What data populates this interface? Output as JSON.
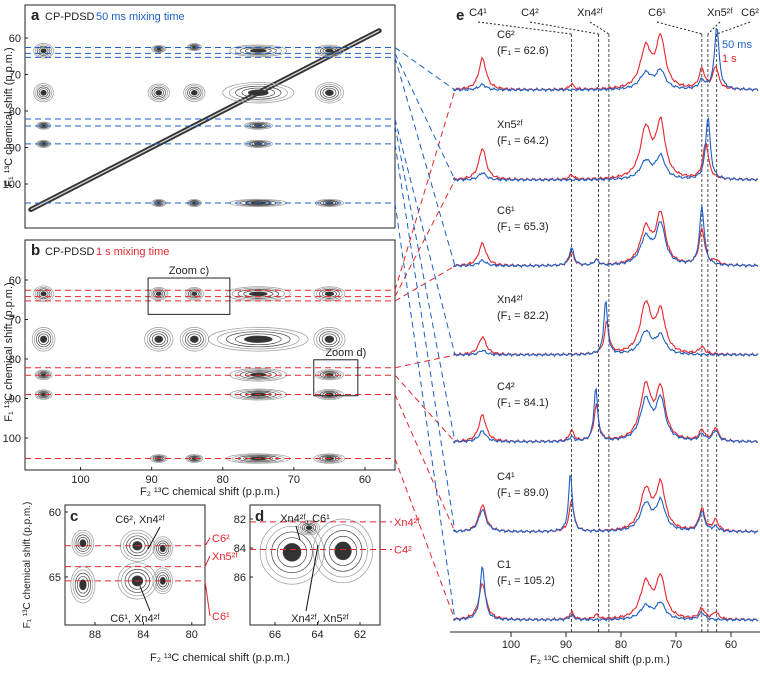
{
  "panel_a": {
    "label": "a",
    "title": "CP-PDSD",
    "mixing": "50 ms mixing time",
    "y_axis_label": "F₁ ¹³C chemical shift (p.p.m.)",
    "yticks": [
      60,
      70,
      80,
      90,
      100
    ],
    "dashed_lines": [
      62.6,
      64.2,
      65.3,
      82.2,
      84.1,
      89.0,
      105.2
    ],
    "diagonal": [
      107,
      58
    ],
    "peaks": [
      [
        105.2,
        63.5,
        1.4,
        2
      ],
      [
        105.2,
        75,
        1.4,
        2.5
      ],
      [
        105.2,
        84,
        1,
        1
      ],
      [
        105.2,
        89,
        1,
        1
      ],
      [
        89,
        63,
        1,
        1
      ],
      [
        84,
        62.5,
        1,
        1
      ],
      [
        75,
        63.5,
        4,
        1.6
      ],
      [
        65,
        63.5,
        2,
        1.6
      ],
      [
        75,
        75,
        5,
        2.8
      ],
      [
        65,
        75,
        2,
        2.8
      ],
      [
        89,
        75,
        1.5,
        2.4
      ],
      [
        84,
        75,
        1.5,
        2.4
      ],
      [
        75,
        84,
        2,
        1
      ],
      [
        75,
        105.2,
        4,
        1
      ],
      [
        65,
        105.2,
        2,
        1
      ],
      [
        89,
        105.2,
        1,
        1
      ],
      [
        84,
        105.2,
        1,
        1
      ],
      [
        75,
        89,
        2,
        1
      ]
    ]
  },
  "panel_b": {
    "label": "b",
    "title": "CP-PDSD",
    "mixing": "1 s mixing time",
    "y_axis_label": "F₁ ¹³C chemical shift (p.p.m.)",
    "x_axis_label": "F₂ ¹³C chemical shift (p.p.m.)",
    "yticks": [
      60,
      70,
      80,
      90,
      100
    ],
    "xticks": [
      100,
      90,
      80,
      70,
      60
    ],
    "dashed_lines": [
      62.6,
      64.2,
      65.3,
      82.2,
      84.1,
      89.0,
      105.2
    ],
    "zoom_c": "Zoom c)",
    "zoom_d": "Zoom d)",
    "peaks": [
      [
        105.2,
        63.5,
        1.4,
        2
      ],
      [
        105.2,
        75,
        1.6,
        3
      ],
      [
        105.2,
        84,
        1.2,
        1.2
      ],
      [
        105.2,
        89,
        1.2,
        1.2
      ],
      [
        89,
        63.5,
        1.3,
        1.6
      ],
      [
        84,
        63.5,
        1.3,
        1.6
      ],
      [
        75,
        63.5,
        4.5,
        1.8
      ],
      [
        65,
        63.5,
        2.2,
        1.8
      ],
      [
        75,
        75,
        7,
        3
      ],
      [
        65,
        75,
        2.2,
        3
      ],
      [
        89,
        75,
        2,
        3
      ],
      [
        84,
        75,
        2,
        3
      ],
      [
        75,
        84,
        4,
        1.6
      ],
      [
        75,
        89,
        4,
        1.4
      ],
      [
        65,
        84,
        2,
        1.3
      ],
      [
        65,
        89,
        2,
        1.3
      ],
      [
        75,
        105.2,
        4.5,
        1.2
      ],
      [
        65,
        105.2,
        2.2,
        1.2
      ],
      [
        89,
        105.2,
        1.2,
        1
      ],
      [
        84,
        105.2,
        1.2,
        1
      ]
    ]
  },
  "panel_c": {
    "label": "c",
    "y_axis_label": "F₁ ¹³C chemical shift (p.p.m.)",
    "x_axis_label": "F₂ ¹³C chemical shift (p.p.m.)",
    "xticks": [
      88,
      84,
      80
    ],
    "yticks": [
      60,
      65
    ],
    "dashed_lines": [
      62.6,
      64.2,
      65.3
    ],
    "side_labels": [
      "C6²",
      "Xn5²ᶠ",
      "C6¹"
    ],
    "annotation_top": "C6², Xn4²ᶠ",
    "annotation_bottom": "C6¹, Xn4²ᶠ",
    "peaks": [
      [
        89,
        62.4,
        0.9,
        1
      ],
      [
        89,
        65.6,
        1,
        1.4
      ],
      [
        84.5,
        62.6,
        1.4,
        1.2
      ],
      [
        84.5,
        65.3,
        1.6,
        1.4
      ],
      [
        82.4,
        62.8,
        0.8,
        0.9
      ],
      [
        82.4,
        65.3,
        0.8,
        1
      ]
    ]
  },
  "panel_d": {
    "label": "d",
    "xticks": [
      66,
      64,
      62
    ],
    "yticks": [
      82,
      84,
      86
    ],
    "dashed_lines": [
      82.2,
      84.1
    ],
    "side_labels": [
      "Xn4²ᶠ",
      "C4²"
    ],
    "annotation_top": "Xn4²ᶠ, C6¹",
    "annotation_bottom": "Xn4²ᶠ, Xn5²ᶠ",
    "peaks": [
      [
        65.2,
        84.3,
        1.5,
        2.2
      ],
      [
        62.8,
        84.2,
        1.4,
        2.2
      ],
      [
        64.4,
        82.6,
        0.5,
        0.5
      ]
    ]
  },
  "panel_e": {
    "label": "e",
    "x_axis_label": "F₂ ¹³C chemical shift (p.p.m.)",
    "xticks": [
      100,
      90,
      80,
      70,
      60
    ],
    "top_labels": [
      {
        "text": "C4¹",
        "ppm": 89.0
      },
      {
        "text": "C4²",
        "ppm": 84.1
      },
      {
        "text": "Xn4²ᶠ",
        "ppm": 82.2
      },
      {
        "text": "C6¹",
        "ppm": 65.3
      },
      {
        "text": "Xn5²ᶠ",
        "ppm": 64.2
      },
      {
        "text": "C6²",
        "ppm": 62.6
      }
    ],
    "legend": [
      {
        "name": "50 ms",
        "color": "#1d5fc4"
      },
      {
        "name": "1 s",
        "color": "#e5262d"
      }
    ],
    "traces": [
      {
        "name": "C6²",
        "f1": "(F₁ = 62.6)",
        "blue": [
          [
            105.2,
            6,
            0.8
          ],
          [
            75.5,
            18,
            1.3
          ],
          [
            72.8,
            20,
            1
          ],
          [
            65.3,
            10,
            0.6
          ],
          [
            62.6,
            70,
            0.5
          ]
        ],
        "red": [
          [
            105.2,
            35,
            0.8
          ],
          [
            89,
            6,
            0.5
          ],
          [
            75.5,
            45,
            1.2
          ],
          [
            72.8,
            55,
            1
          ],
          [
            65.3,
            22,
            0.6
          ],
          [
            62.8,
            25,
            0.6
          ]
        ]
      },
      {
        "name": "Xn5²ᶠ",
        "f1": "(F₁ = 64.2)",
        "blue": [
          [
            105.2,
            8,
            0.8
          ],
          [
            75.5,
            20,
            1.2
          ],
          [
            72.8,
            25,
            1
          ],
          [
            64.2,
            70,
            0.5
          ]
        ],
        "red": [
          [
            105.2,
            35,
            0.8
          ],
          [
            89,
            5,
            0.5
          ],
          [
            75.5,
            55,
            1.2
          ],
          [
            72.8,
            60,
            1
          ],
          [
            64.6,
            40,
            0.6
          ]
        ]
      },
      {
        "name": "C6¹",
        "f1": "(F₁ = 65.3)",
        "blue": [
          [
            105.2,
            6,
            0.8
          ],
          [
            89,
            20,
            0.5
          ],
          [
            84.5,
            6,
            0.5
          ],
          [
            75.5,
            30,
            1.2
          ],
          [
            72.8,
            45,
            1
          ],
          [
            65.3,
            65,
            0.5
          ]
        ],
        "red": [
          [
            105.2,
            25,
            0.8
          ],
          [
            89,
            15,
            0.5
          ],
          [
            84.5,
            6,
            0.5
          ],
          [
            75.5,
            40,
            1.2
          ],
          [
            72.8,
            55,
            1
          ],
          [
            65.3,
            40,
            0.6
          ],
          [
            62.8,
            5,
            0.6
          ]
        ]
      },
      {
        "name": "Xn4²ᶠ",
        "f1": "(F₁ = 82.2)",
        "blue": [
          [
            105.2,
            5,
            0.8
          ],
          [
            82.8,
            60,
            0.4
          ],
          [
            75.5,
            25,
            1.2
          ],
          [
            72.8,
            20,
            1
          ]
        ],
        "red": [
          [
            105.2,
            20,
            0.8
          ],
          [
            82.6,
            35,
            0.5
          ],
          [
            75.5,
            55,
            1.2
          ],
          [
            72.8,
            45,
            1
          ],
          [
            65.3,
            8,
            0.6
          ]
        ]
      },
      {
        "name": "C4²",
        "f1": "(F₁ = 84.1)",
        "blue": [
          [
            105.2,
            12,
            0.8
          ],
          [
            89,
            5,
            0.5
          ],
          [
            84.6,
            60,
            0.4
          ],
          [
            75.5,
            45,
            1.2
          ],
          [
            72.8,
            45,
            1
          ],
          [
            65.3,
            8,
            0.6
          ],
          [
            62.8,
            12,
            0.6
          ]
        ],
        "red": [
          [
            105.2,
            30,
            0.8
          ],
          [
            89,
            12,
            0.5
          ],
          [
            84.5,
            40,
            0.5
          ],
          [
            75.5,
            60,
            1.2
          ],
          [
            72.8,
            55,
            1
          ],
          [
            65.3,
            12,
            0.6
          ],
          [
            62.8,
            15,
            0.6
          ]
        ]
      },
      {
        "name": "C4¹",
        "f1": "(F₁ = 89.0)",
        "blue": [
          [
            105.2,
            25,
            0.8
          ],
          [
            89.2,
            65,
            0.4
          ],
          [
            75.5,
            30,
            1.2
          ],
          [
            72.8,
            32,
            1
          ],
          [
            65.3,
            22,
            0.6
          ],
          [
            62.8,
            5,
            0.6
          ]
        ],
        "red": [
          [
            105.2,
            30,
            0.8
          ],
          [
            89,
            35,
            0.5
          ],
          [
            75.5,
            45,
            1.2
          ],
          [
            72.8,
            50,
            1
          ],
          [
            65.3,
            25,
            0.6
          ],
          [
            62.8,
            12,
            0.6
          ]
        ]
      },
      {
        "name": "C1",
        "f1": "(F₁ = 105.2)",
        "blue": [
          [
            105.2,
            60,
            0.5
          ],
          [
            89,
            5,
            0.5
          ],
          [
            75.5,
            15,
            1.2
          ],
          [
            72.8,
            18,
            1
          ],
          [
            65.3,
            8,
            0.6
          ]
        ],
        "red": [
          [
            105.2,
            40,
            0.8
          ],
          [
            89,
            8,
            0.5
          ],
          [
            84.5,
            5,
            0.5
          ],
          [
            75.5,
            40,
            1.2
          ],
          [
            72.8,
            45,
            1
          ],
          [
            65.3,
            12,
            0.6
          ],
          [
            62.8,
            8,
            0.6
          ]
        ]
      }
    ]
  }
}
